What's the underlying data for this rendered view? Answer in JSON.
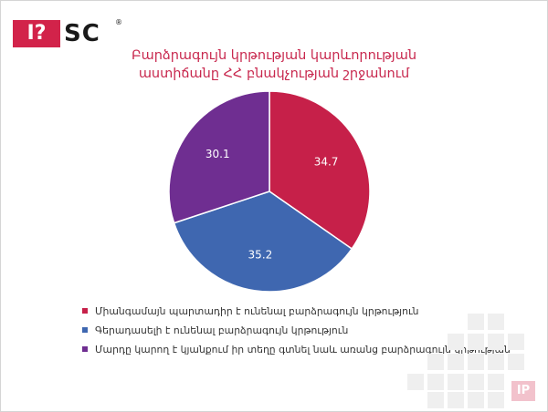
{
  "logo": {
    "box_text": "I?",
    "text": "SC",
    "reg": "®"
  },
  "title_lines": [
    "Բարձրագույն կրթության կարևորության",
    "աստիճանը ՀՀ բնակչության շրջանում"
  ],
  "chart_data": {
    "type": "pie",
    "title": "Բարձրագույն կրթության կարևորության աստիճանը ՀՀ բնակչության շրջանում",
    "categories": [
      "Միանգամայն պարտադիր է ունենալ բարձրագույն կրթություն",
      "Գերադասելի է ունենալ բարձրագույն կրթություն",
      "Մարդը կարող է կյանքում իր տեղը գտնել նաև առանց բարձրագույն կրթության"
    ],
    "values": [
      34.7,
      35.2,
      30.1
    ],
    "data_labels": [
      "34.7",
      "35.2",
      "30.1"
    ],
    "colors": [
      "#c62049",
      "#3f67b0",
      "#6f2e91"
    ],
    "start_angle_deg": 0,
    "direction": "clockwise",
    "legend_position": "bottom"
  },
  "watermark": {
    "logo_text": "IP"
  }
}
